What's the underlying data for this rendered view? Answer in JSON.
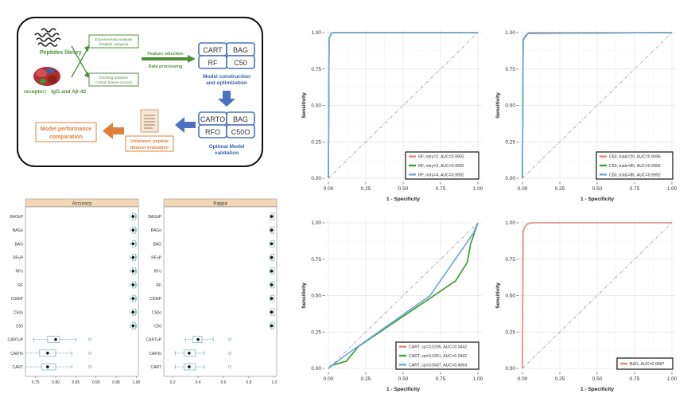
{
  "workflow": {
    "peptides_label": "Peptides library",
    "receptor_label": "receptor： IgG and Aβ-42",
    "exp_analysis_line1": "Experimental analysis",
    "exp_analysis_line2": "(Peptide category)",
    "dock_analysis_line1": "Docking analysis",
    "dock_analysis_line2": "(Virtual feature-scores)",
    "feature_selection": "Feature selection",
    "data_processing": "Data processing",
    "models_top": [
      "CART",
      "BAG",
      "RF",
      "C50"
    ],
    "model_construction_line1": "Model construction",
    "model_construction_line2": "and optimization",
    "models_bottom": [
      "CARTO",
      "BAG",
      "RFO",
      "C50O"
    ],
    "optimal_model_line1": "Optimal Model",
    "optimal_model_line2": "validation",
    "unknown_line1": "Unknown: peptide",
    "unknown_line2": "dataset evaluation",
    "performance_line1": "Model performance",
    "performance_line2": "comparation",
    "colors": {
      "green": "#4f8f3a",
      "blue": "#4a72c0",
      "orange": "#e0803a"
    }
  },
  "chart_data": [
    {
      "type": "boxplot",
      "title": "Accuracy",
      "categories": [
        "BAGbP",
        "BAGo",
        "BAG",
        "RFuP",
        "RFo",
        "RF",
        "C50bP",
        "C50o",
        "C50",
        "CARTuP",
        "CARTo",
        "CART"
      ],
      "medians": [
        0.992,
        0.992,
        0.992,
        0.992,
        0.992,
        0.992,
        0.992,
        0.992,
        0.992,
        0.8,
        0.78,
        0.78
      ],
      "q1": [
        0.99,
        0.99,
        0.99,
        0.99,
        0.99,
        0.99,
        0.99,
        0.99,
        0.99,
        0.78,
        0.76,
        0.765
      ],
      "q3": [
        0.995,
        0.995,
        0.995,
        0.995,
        0.995,
        0.995,
        0.995,
        0.995,
        0.995,
        0.81,
        0.8,
        0.8
      ],
      "whisker_low": [
        0.985,
        0.985,
        0.985,
        0.985,
        0.985,
        0.985,
        0.985,
        0.985,
        0.985,
        0.745,
        0.725,
        0.725
      ],
      "whisker_high": [
        1.0,
        1.0,
        1.0,
        1.0,
        1.0,
        1.0,
        1.0,
        1.0,
        1.0,
        0.85,
        0.84,
        0.84
      ],
      "outliers": [
        [],
        [],
        [],
        [],
        [],
        [],
        [],
        [],
        [],
        [
          0.885
        ],
        [
          0.885
        ],
        [
          0.885
        ]
      ],
      "xticks": [
        "0.75",
        "0.80",
        "0.85",
        "0.90",
        "0.95",
        "1.00"
      ],
      "xlim": [
        0.725,
        1.005
      ]
    },
    {
      "type": "boxplot",
      "title": "Kappa",
      "categories": [
        "BAGbP",
        "BAGo",
        "BAG",
        "RFuP",
        "RFo",
        "RF",
        "C50bP",
        "C50o",
        "C50",
        "CARTuP",
        "CARTo",
        "CART"
      ],
      "medians": [
        0.98,
        0.98,
        0.98,
        0.98,
        0.98,
        0.98,
        0.98,
        0.98,
        0.98,
        0.4,
        0.33,
        0.33
      ],
      "q1": [
        0.975,
        0.975,
        0.975,
        0.975,
        0.975,
        0.975,
        0.975,
        0.975,
        0.975,
        0.36,
        0.29,
        0.29
      ],
      "q3": [
        0.99,
        0.99,
        0.99,
        0.99,
        0.99,
        0.99,
        0.99,
        0.99,
        0.99,
        0.43,
        0.38,
        0.38
      ],
      "whisker_low": [
        0.965,
        0.965,
        0.965,
        0.965,
        0.965,
        0.965,
        0.965,
        0.965,
        0.965,
        0.3,
        0.22,
        0.22
      ],
      "whisker_high": [
        1.0,
        1.0,
        1.0,
        1.0,
        1.0,
        1.0,
        1.0,
        1.0,
        1.0,
        0.52,
        0.45,
        0.45
      ],
      "outliers": [
        [],
        [],
        [],
        [],
        [],
        [],
        [],
        [],
        [],
        [
          0.65
        ],
        [
          0.65
        ],
        [
          0.65
        ]
      ],
      "xticks": [
        "0.2",
        "0.4",
        "0.6",
        "0.8",
        "1.0"
      ],
      "xlim": [
        0.13,
        1.02
      ]
    },
    {
      "type": "line",
      "title": "",
      "xlabel": "1 - Specificity",
      "ylabel": "Sensitivity",
      "xlim": [
        0,
        1
      ],
      "ylim": [
        0,
        1
      ],
      "xticks": [
        "0.00",
        "0.25",
        "0.50",
        "0.75",
        "1.00"
      ],
      "yticks": [
        "0.00",
        "0.25",
        "0.50",
        "0.75",
        "1.00"
      ],
      "series": [
        {
          "name": "RF, mtry=2, AUC=0.9992",
          "color": "#e8847a",
          "x": [
            0,
            0.005,
            0.02,
            0.03,
            1.0
          ],
          "y": [
            0,
            0.96,
            0.995,
            1.0,
            1.0
          ]
        },
        {
          "name": "RF, mtry=3, AUC=0.9992",
          "color": "#3aa33a",
          "x": [
            0,
            0.005,
            0.02,
            0.03,
            1.0
          ],
          "y": [
            0,
            0.96,
            0.995,
            1.0,
            1.0
          ]
        },
        {
          "name": "RF, mtry=4, AUC=0.9992",
          "color": "#6ea6d8",
          "x": [
            0,
            0.005,
            0.02,
            0.03,
            1.0
          ],
          "y": [
            0,
            0.96,
            0.995,
            1.0,
            1.0
          ]
        }
      ]
    },
    {
      "type": "line",
      "title": "",
      "xlabel": "1 - Specificity",
      "ylabel": "Sensitivity",
      "xlim": [
        0,
        1
      ],
      "ylim": [
        0,
        1
      ],
      "xticks": [
        "0.00",
        "0.25",
        "0.50",
        "0.75",
        "1.00"
      ],
      "yticks": [
        "0.00",
        "0.25",
        "0.50",
        "0.75",
        "1.00"
      ],
      "series": [
        {
          "name": "C50, trials=20, AUC=0.9996",
          "color": "#e8847a",
          "x": [
            0,
            0.005,
            0.02,
            0.04,
            0.06,
            1.0
          ],
          "y": [
            0,
            0.95,
            0.97,
            1.0,
            1.0,
            1.0
          ]
        },
        {
          "name": "C50, trials=80, AUC=0.9992",
          "color": "#3aa33a",
          "x": [
            0,
            0.005,
            0.02,
            0.04,
            1.0
          ],
          "y": [
            0,
            0.95,
            0.98,
            0.995,
            1.0
          ]
        },
        {
          "name": "C50, trials=86, AUC=0.9992",
          "color": "#6ea6d8",
          "x": [
            0,
            0.005,
            0.02,
            0.04,
            1.0
          ],
          "y": [
            0,
            0.95,
            0.98,
            0.995,
            1.0
          ]
        }
      ]
    },
    {
      "type": "line",
      "title": "",
      "xlabel": "1 - Specificity",
      "ylabel": "Sensitivity",
      "xlim": [
        0,
        1
      ],
      "ylim": [
        0,
        1
      ],
      "xticks": [
        "0.00",
        "0.25",
        "0.50",
        "0.75",
        "1.00"
      ],
      "yticks": [
        "0.00",
        "0.25",
        "0.50",
        "0.75",
        "1.00"
      ],
      "series": [
        {
          "name": "CART, cp=0.0295, AUC=0.3442",
          "color": "#e8847a",
          "x": [
            0,
            0.02,
            0.12,
            0.2,
            0.85,
            0.93,
            0.95,
            1.0
          ],
          "y": [
            0,
            0.02,
            0.05,
            0.15,
            0.6,
            0.73,
            0.85,
            1.0
          ]
        },
        {
          "name": "CART, cp=0.0351, AUC=0.3442",
          "color": "#3aa33a",
          "x": [
            0,
            0.02,
            0.12,
            0.2,
            0.85,
            0.93,
            0.95,
            1.0
          ],
          "y": [
            0,
            0.02,
            0.05,
            0.15,
            0.6,
            0.73,
            0.85,
            1.0
          ]
        },
        {
          "name": "CART, cp=0.0437, AUC=0.4064",
          "color": "#6ea6d8",
          "x": [
            0,
            0.1,
            0.68,
            0.97,
            1.0
          ],
          "y": [
            0,
            0.08,
            0.5,
            0.93,
            1.0
          ]
        }
      ]
    },
    {
      "type": "line",
      "title": "",
      "xlabel": "1 - Specificity",
      "ylabel": "Sensitivity",
      "xlim": [
        0,
        1
      ],
      "ylim": [
        0,
        1
      ],
      "xticks": [
        "0.00",
        "0.25",
        "0.50",
        "0.75",
        "1.00"
      ],
      "yticks": [
        "0.00",
        "0.25",
        "0.50",
        "0.75",
        "1.00"
      ],
      "series": [
        {
          "name": "BAG, AUC=0.9987",
          "color": "#e8847a",
          "x": [
            0,
            0.005,
            0.015,
            0.03,
            0.06,
            1.0
          ],
          "y": [
            0,
            0.94,
            0.97,
            0.99,
            1.0,
            1.0
          ]
        }
      ]
    }
  ]
}
